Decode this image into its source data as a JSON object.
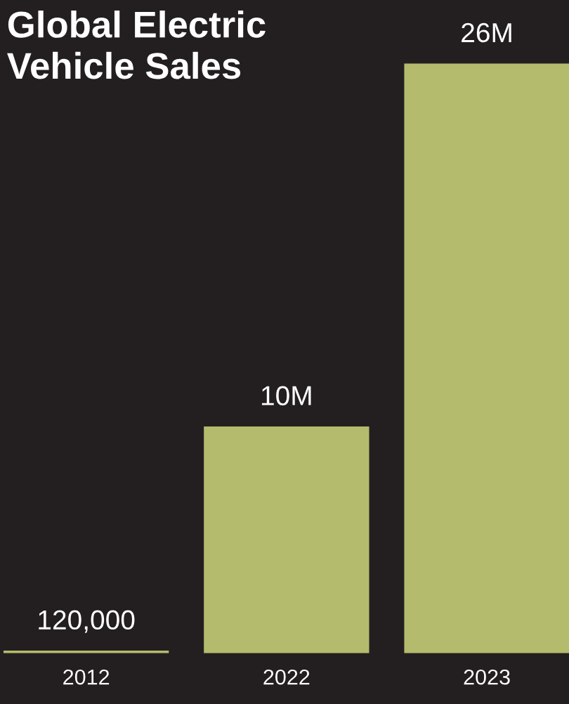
{
  "chart_data": {
    "type": "bar",
    "title": "Global Electric\nVehicle Sales",
    "categories": [
      "2012",
      "2022",
      "2023"
    ],
    "values": [
      120000,
      10000000,
      26000000
    ],
    "value_labels": [
      "120,000",
      "10M",
      "26M"
    ],
    "color": "#b5bb6c",
    "grid": false,
    "legend": false
  }
}
